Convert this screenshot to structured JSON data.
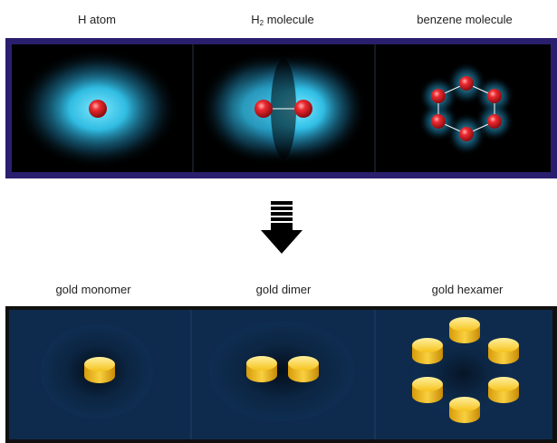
{
  "top_row": {
    "labels": [
      "H atom",
      "H",
      "2",
      "molecule",
      "benzene molecule"
    ]
  },
  "bottom_row": {
    "labels": [
      "gold monomer",
      "gold dimer",
      "gold hexamer"
    ]
  },
  "colors": {
    "top_frame": "#2a1f6e",
    "glow": "#33c6ee",
    "atom": "#e8202a",
    "bottom_bg": "#0d2a48",
    "gold": "#f5c21a"
  },
  "icons": {
    "arrow": "down-arrow-icon"
  }
}
